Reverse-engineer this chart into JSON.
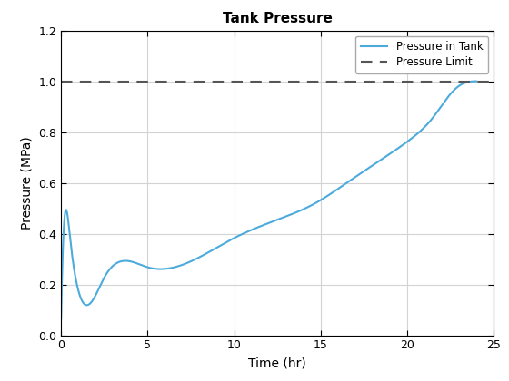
{
  "title": "Tank Pressure",
  "xlabel": "Time (hr)",
  "ylabel": "Pressure (MPa)",
  "xlim": [
    0,
    25
  ],
  "ylim": [
    0,
    1.2
  ],
  "xticks": [
    0,
    5,
    10,
    15,
    20,
    25
  ],
  "yticks": [
    0,
    0.2,
    0.4,
    0.6,
    0.8,
    1.0,
    1.2
  ],
  "pressure_limit": 1.0,
  "line_color": "#4DAADC",
  "limit_color": "#555555",
  "legend_labels": [
    "Pressure in Tank",
    "Pressure Limit"
  ],
  "background_color": "#ffffff",
  "grid_color": "#d3d3d3",
  "t_key": [
    0,
    0.5,
    2.5,
    5.0,
    10.0,
    13.0,
    14.5,
    17.0,
    20.0,
    21.5,
    22.5,
    23.2,
    24.0
  ],
  "p_key": [
    0.065,
    0.395,
    0.228,
    0.268,
    0.383,
    0.468,
    0.513,
    0.623,
    0.762,
    0.858,
    0.95,
    0.99,
    1.0
  ]
}
